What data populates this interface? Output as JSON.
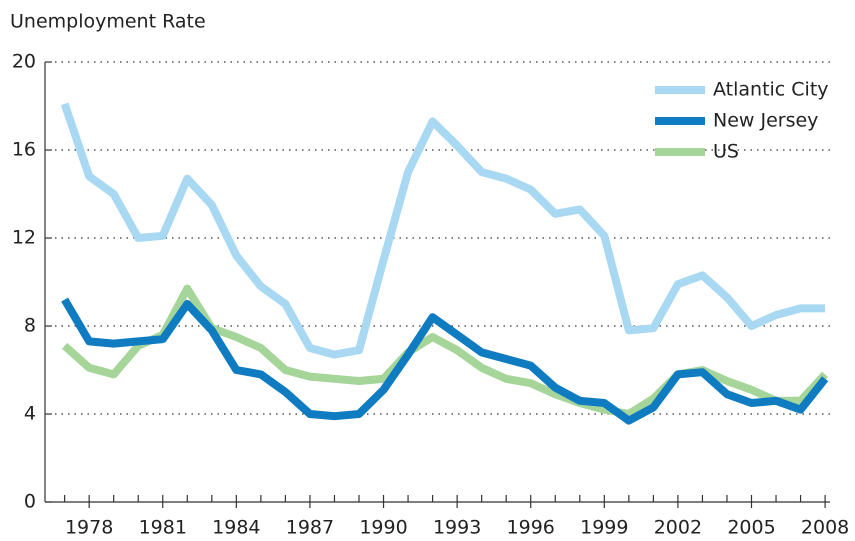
{
  "chart_data": {
    "type": "line",
    "y_label": "Unemployment Rate",
    "x": [
      1977,
      1978,
      1979,
      1980,
      1981,
      1982,
      1983,
      1984,
      1985,
      1986,
      1987,
      1988,
      1989,
      1990,
      1991,
      1992,
      1993,
      1994,
      1995,
      1996,
      1997,
      1998,
      1999,
      2000,
      2001,
      2002,
      2003,
      2004,
      2005,
      2006,
      2007,
      2008
    ],
    "series": [
      {
        "name": "Atlantic City",
        "color": "#a9d8f2",
        "values": [
          18.1,
          14.8,
          14.0,
          12.0,
          12.1,
          14.7,
          13.5,
          11.2,
          9.8,
          9.0,
          7.0,
          6.7,
          6.9,
          11.0,
          15.0,
          17.3,
          16.2,
          15.0,
          14.7,
          14.2,
          13.1,
          13.3,
          12.1,
          7.8,
          7.9,
          9.9,
          10.3,
          9.3,
          8.0,
          8.5,
          8.8,
          8.8
        ]
      },
      {
        "name": "New Jersey",
        "color": "#0f7bc1",
        "values": [
          9.2,
          7.3,
          7.2,
          7.3,
          7.4,
          9.0,
          7.8,
          6.0,
          5.8,
          5.0,
          4.0,
          3.9,
          4.0,
          5.1,
          6.7,
          8.4,
          7.6,
          6.8,
          6.5,
          6.2,
          5.2,
          4.6,
          4.5,
          3.7,
          4.3,
          5.8,
          5.9,
          4.9,
          4.5,
          4.6,
          4.2,
          5.6
        ]
      },
      {
        "name": "US",
        "color": "#a6d59a",
        "values": [
          7.1,
          6.1,
          5.8,
          7.1,
          7.6,
          9.7,
          7.9,
          7.5,
          7.0,
          6.0,
          5.7,
          5.6,
          5.5,
          5.6,
          6.8,
          7.5,
          6.9,
          6.1,
          5.6,
          5.4,
          4.9,
          4.5,
          4.2,
          4.0,
          4.7,
          5.8,
          6.0,
          5.5,
          5.1,
          4.6,
          4.6,
          5.8
        ]
      }
    ],
    "xlim": [
      1976.2,
      2008.2
    ],
    "xticks": [
      1978,
      1981,
      1984,
      1987,
      1990,
      1993,
      1996,
      1999,
      2002,
      2005,
      2008
    ],
    "ylim": [
      0,
      20
    ],
    "yticks": [
      0,
      4,
      8,
      12,
      16,
      20
    ],
    "grid": true,
    "legend": "top-right"
  }
}
